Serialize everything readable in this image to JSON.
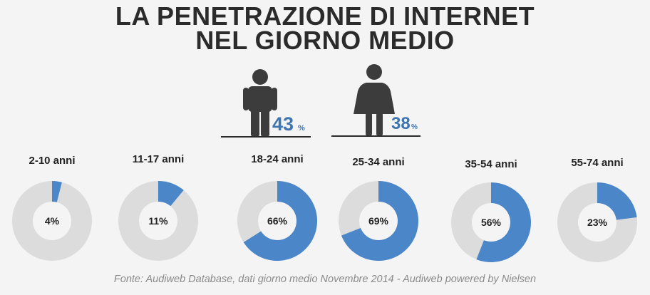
{
  "title": {
    "line1": "LA PENETRAZIONE DI INTERNET",
    "line2": "NEL GIORNO MEDIO"
  },
  "gender": {
    "male": {
      "value": "43",
      "unit": "%",
      "icon": "male-figure-icon"
    },
    "female": {
      "value": "38",
      "unit": "%",
      "icon": "female-figure-icon"
    }
  },
  "colors": {
    "accent": "#4a86c8",
    "track": "#dcdcdc",
    "hole": "#f4f4f4",
    "text_dark": "#222222",
    "figure": "#3c3c3c"
  },
  "chart_data": {
    "type": "pie",
    "categories": [
      "2-10 anni",
      "11-17 anni",
      "18-24 anni",
      "25-34 anni",
      "35-54 anni",
      "55-74 anni"
    ],
    "values": [
      4,
      11,
      66,
      69,
      56,
      23
    ],
    "value_labels": [
      "4%",
      "11%",
      "66%",
      "69%",
      "56%",
      "23%"
    ],
    "unit": "%",
    "style": "donut"
  },
  "source": "Fonte: Audiweb  Database, dati giorno medio Novembre 2014 - Audiweb  powered  by Nielsen"
}
